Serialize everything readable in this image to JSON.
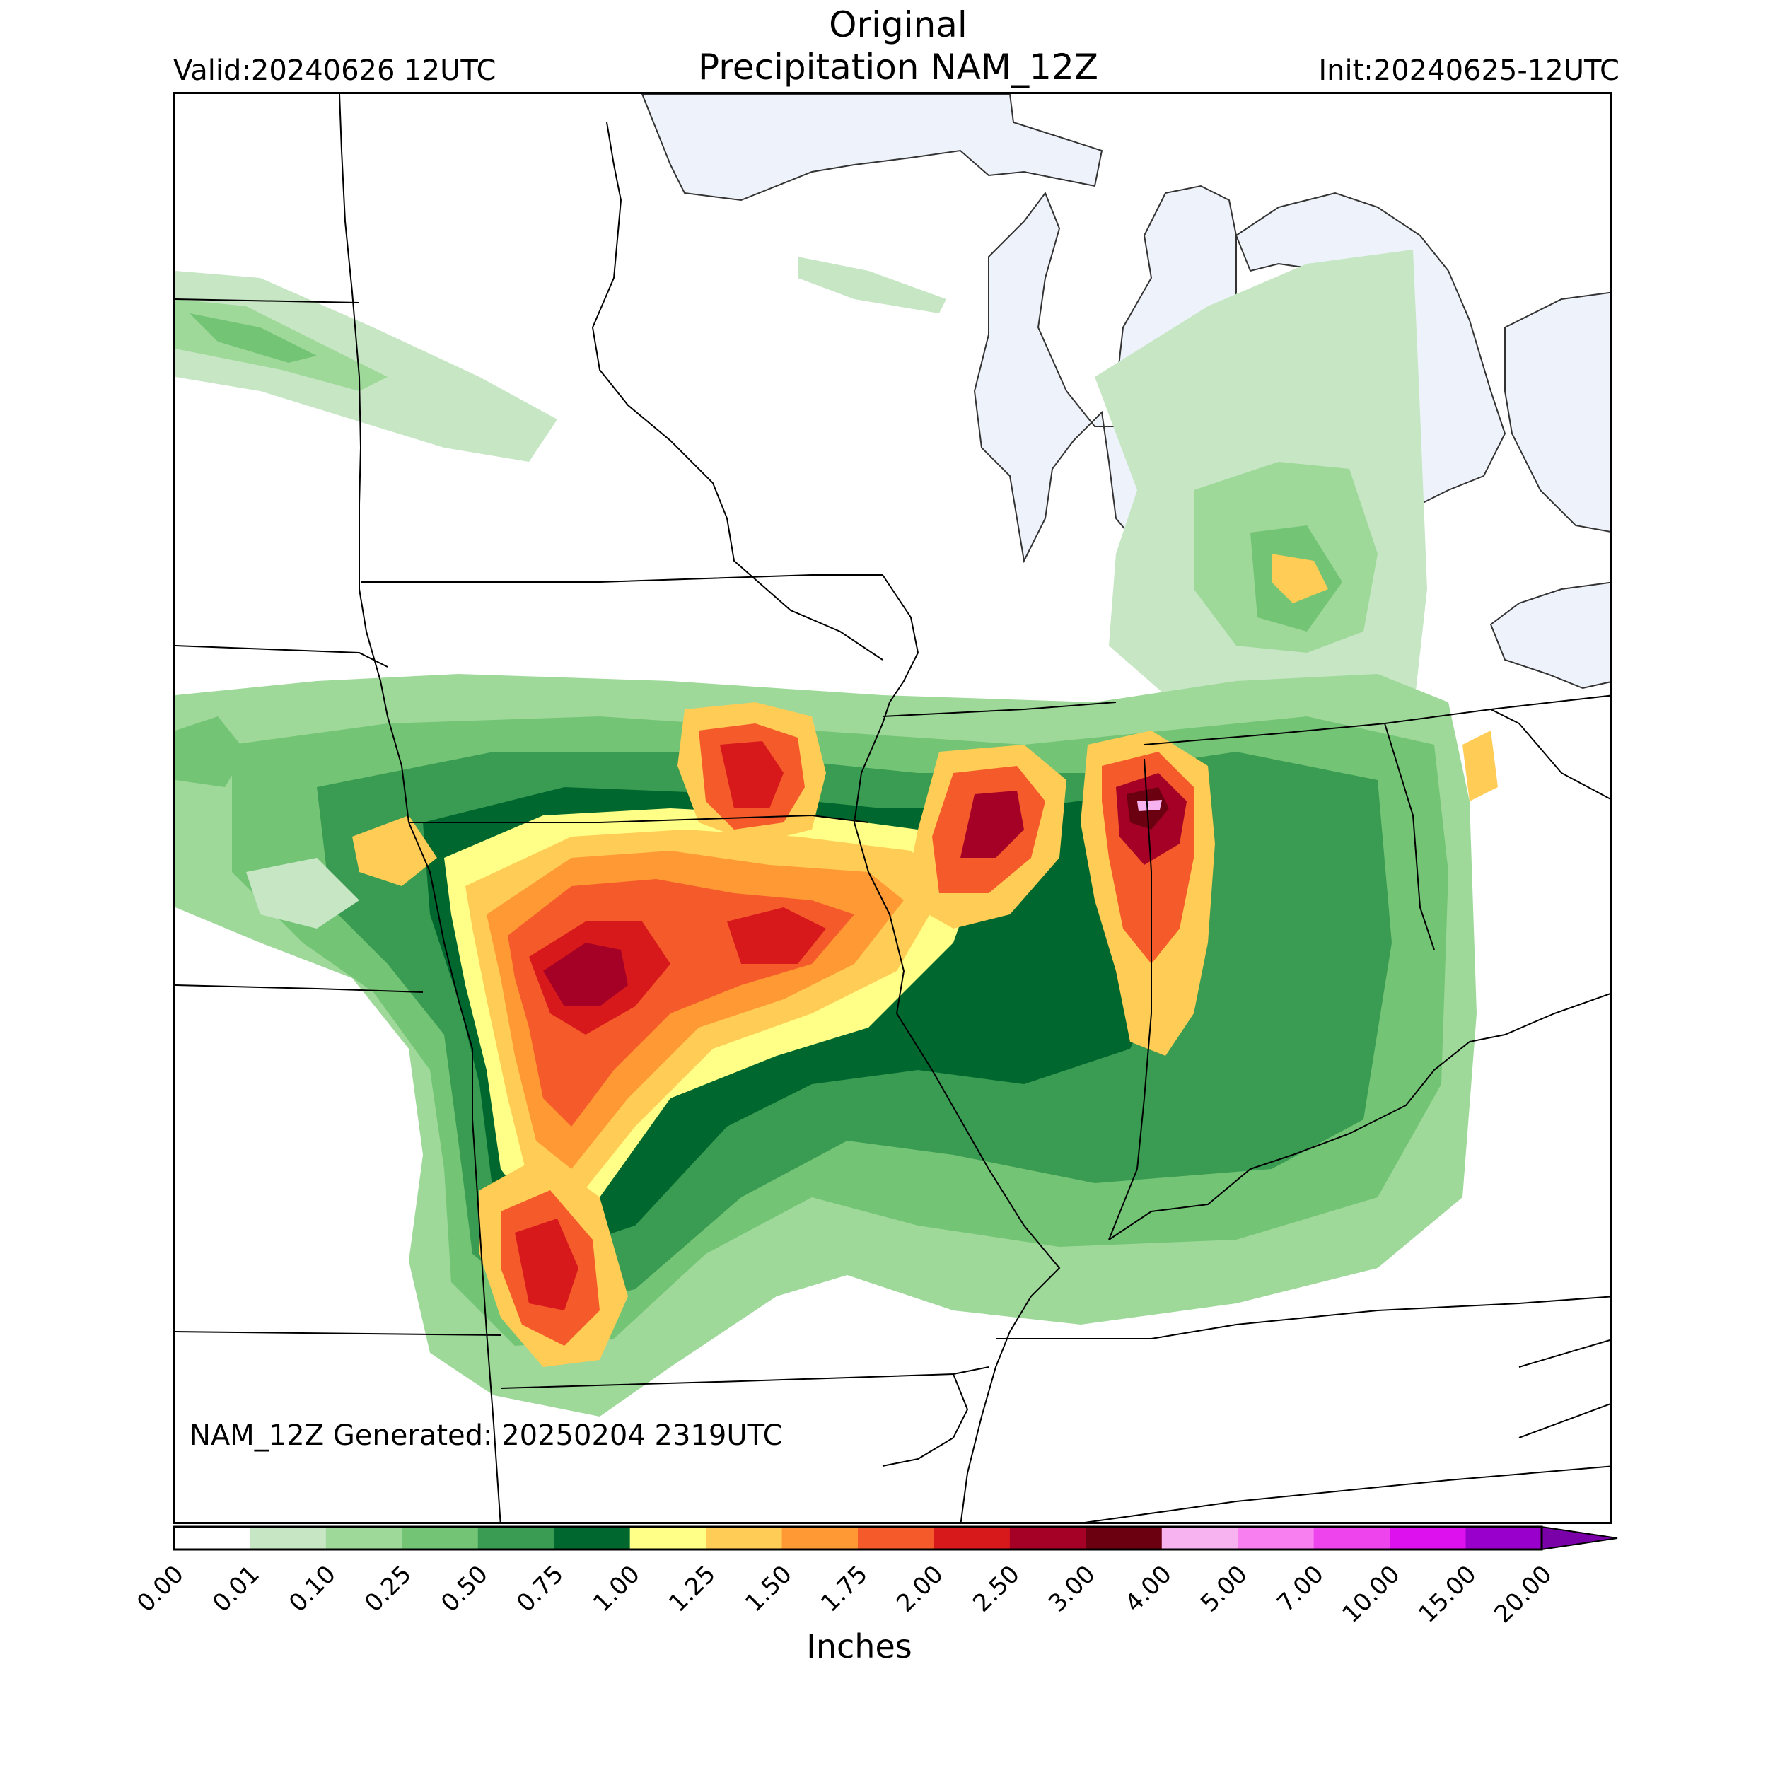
{
  "header": {
    "title_line1": "Original",
    "title_line2": "Precipitation NAM_12Z",
    "valid": "Valid:20240626 12UTC",
    "init": "Init:20240625-12UTC"
  },
  "footer": {
    "generated": "NAM_12Z Generated: 20250204 2319UTC"
  },
  "colorbar": {
    "units_label": "Inches",
    "ticks": [
      "0.00",
      "0.01",
      "0.10",
      "0.25",
      "0.50",
      "0.75",
      "1.00",
      "1.25",
      "1.50",
      "1.75",
      "2.00",
      "2.50",
      "3.00",
      "4.00",
      "5.00",
      "7.00",
      "10.00",
      "15.00",
      "20.00"
    ],
    "colors": [
      "#ffffff",
      "#c6e6c4",
      "#9ed99a",
      "#74c476",
      "#3a9c52",
      "#00682f",
      "#ffff87",
      "#ffcc55",
      "#ff9933",
      "#f55a2b",
      "#d7191c",
      "#a50026",
      "#6b0010",
      "#f7b2f0",
      "#f77ff0",
      "#ee44ee",
      "#dd11ee",
      "#9900cc"
    ],
    "extend_color": "#7a00a8"
  },
  "map": {
    "water_color": "#eef3fb",
    "boundary_color": "#000000"
  }
}
